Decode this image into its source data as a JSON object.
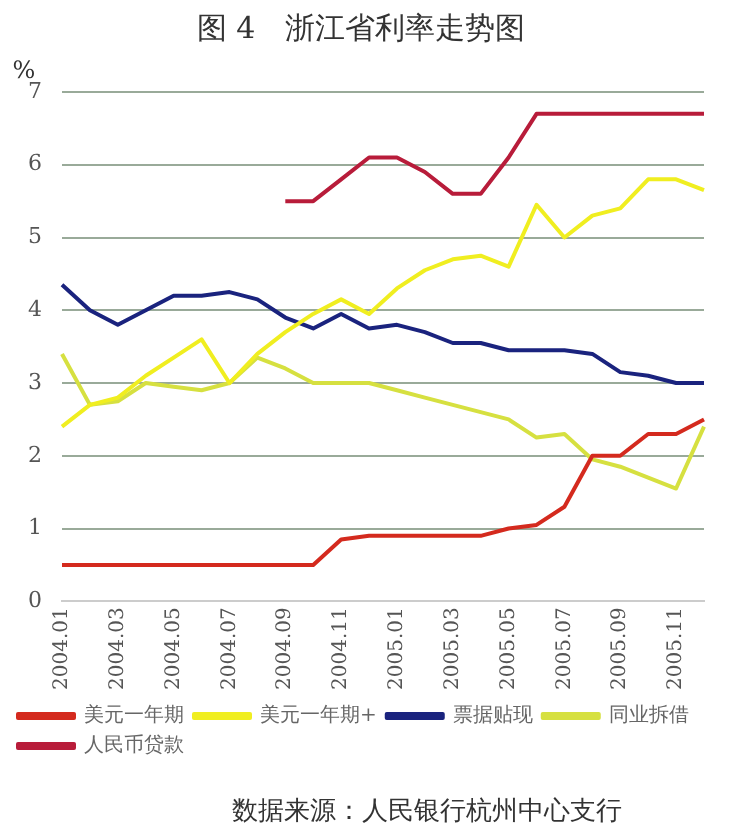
{
  "chart_data": {
    "type": "line",
    "title": "图 4　浙江省利率走势图",
    "ylabel": "%",
    "categories": [
      "2004.01",
      null,
      "2004.03",
      null,
      "2004.05",
      null,
      "2004.07",
      null,
      "2004.09",
      null,
      "2004.11",
      null,
      "2005.01",
      null,
      "2005.03",
      null,
      "2005.05",
      null,
      "2005.07",
      null,
      "2005.09",
      null,
      "2005.11",
      null
    ],
    "series": [
      {
        "name": "美元一年期",
        "color": "#d42a1e",
        "values": [
          0.5,
          0.5,
          0.5,
          0.5,
          0.5,
          0.5,
          0.5,
          0.5,
          0.5,
          0.5,
          0.85,
          0.9,
          0.9,
          0.9,
          0.9,
          0.9,
          1.0,
          1.05,
          1.3,
          2.0,
          2.0,
          2.3,
          2.3,
          2.5
        ]
      },
      {
        "name": "美元一年期+",
        "color": "#f0ee20",
        "values": [
          2.4,
          2.7,
          2.8,
          3.1,
          3.35,
          3.6,
          3.0,
          3.4,
          3.7,
          3.95,
          4.15,
          3.95,
          4.3,
          4.55,
          4.7,
          4.75,
          4.6,
          5.45,
          5.0,
          5.3,
          5.4,
          5.8,
          5.8,
          5.65
        ]
      },
      {
        "name": "票据贴现",
        "color": "#1a237e",
        "values": [
          4.35,
          4.0,
          3.8,
          4.0,
          4.2,
          4.2,
          4.25,
          4.15,
          3.9,
          3.75,
          3.95,
          3.75,
          3.8,
          3.7,
          3.55,
          3.55,
          3.45,
          3.45,
          3.45,
          3.4,
          3.15,
          3.1,
          3.0,
          3.0
        ]
      },
      {
        "name": "同业拆借",
        "color": "#d6e040",
        "values": [
          3.4,
          2.7,
          2.75,
          3.0,
          2.95,
          2.9,
          3.0,
          3.35,
          3.2,
          3.0,
          3.0,
          3.0,
          2.9,
          2.8,
          2.7,
          2.6,
          2.5,
          2.25,
          2.3,
          1.95,
          1.85,
          1.7,
          1.55,
          2.4
        ]
      },
      {
        "name": "人民币贷款",
        "color": "#b81c3a",
        "values": [
          null,
          null,
          null,
          null,
          null,
          null,
          null,
          null,
          5.5,
          5.5,
          5.8,
          6.1,
          6.1,
          5.9,
          5.6,
          5.6,
          6.1,
          6.7,
          6.7,
          6.7,
          6.7,
          6.7,
          6.7,
          6.7
        ]
      }
    ],
    "ylim": [
      0,
      7
    ],
    "yticks": [
      0,
      1,
      2,
      3,
      4,
      5,
      6,
      7
    ],
    "grid": "y",
    "legend": "bottom",
    "marker": "none",
    "line_style": "solid",
    "annotations": [
      "数据来源：人民银行杭州中心支行"
    ]
  }
}
